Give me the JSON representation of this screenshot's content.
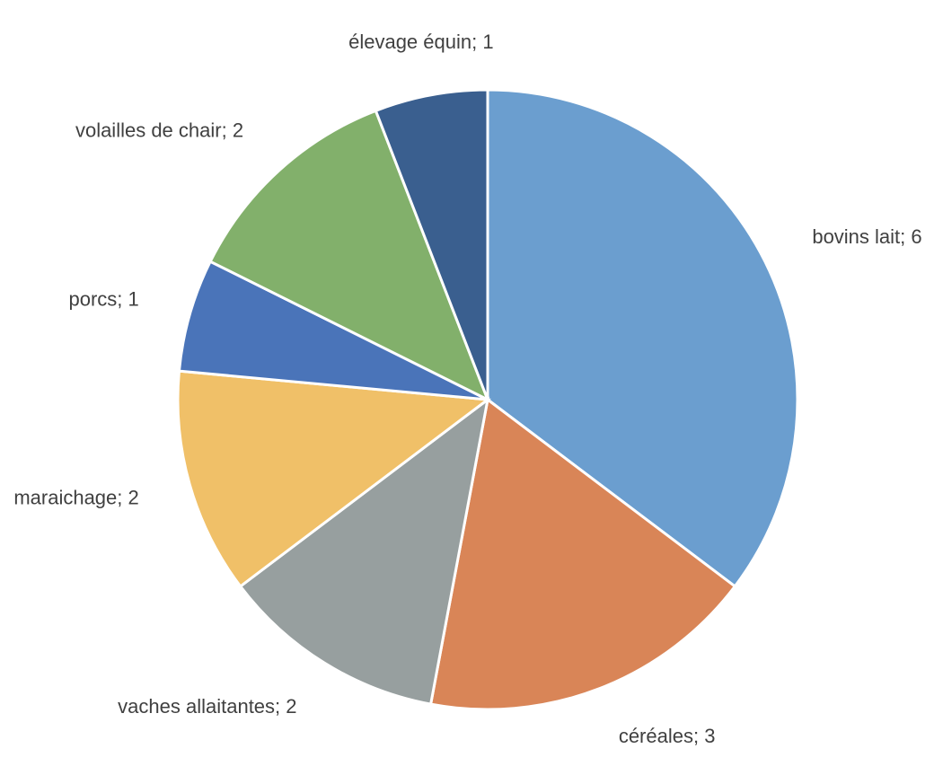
{
  "chart_data": {
    "type": "pie",
    "values": [
      6,
      3,
      2,
      2,
      1,
      2,
      1
    ],
    "value_labels": [
      "bovins lait; 6",
      "céréales; 3",
      "vaches allaitantes; 2",
      "maraichage; 2",
      "porcs; 1",
      "volailles de chair; 2",
      "élevage équin; 1"
    ],
    "colors": [
      "#6b9ecf",
      "#d98557",
      "#979f9f",
      "#f0c068",
      "#4a74b9",
      "#82b06b",
      "#3a5f8f"
    ]
  }
}
